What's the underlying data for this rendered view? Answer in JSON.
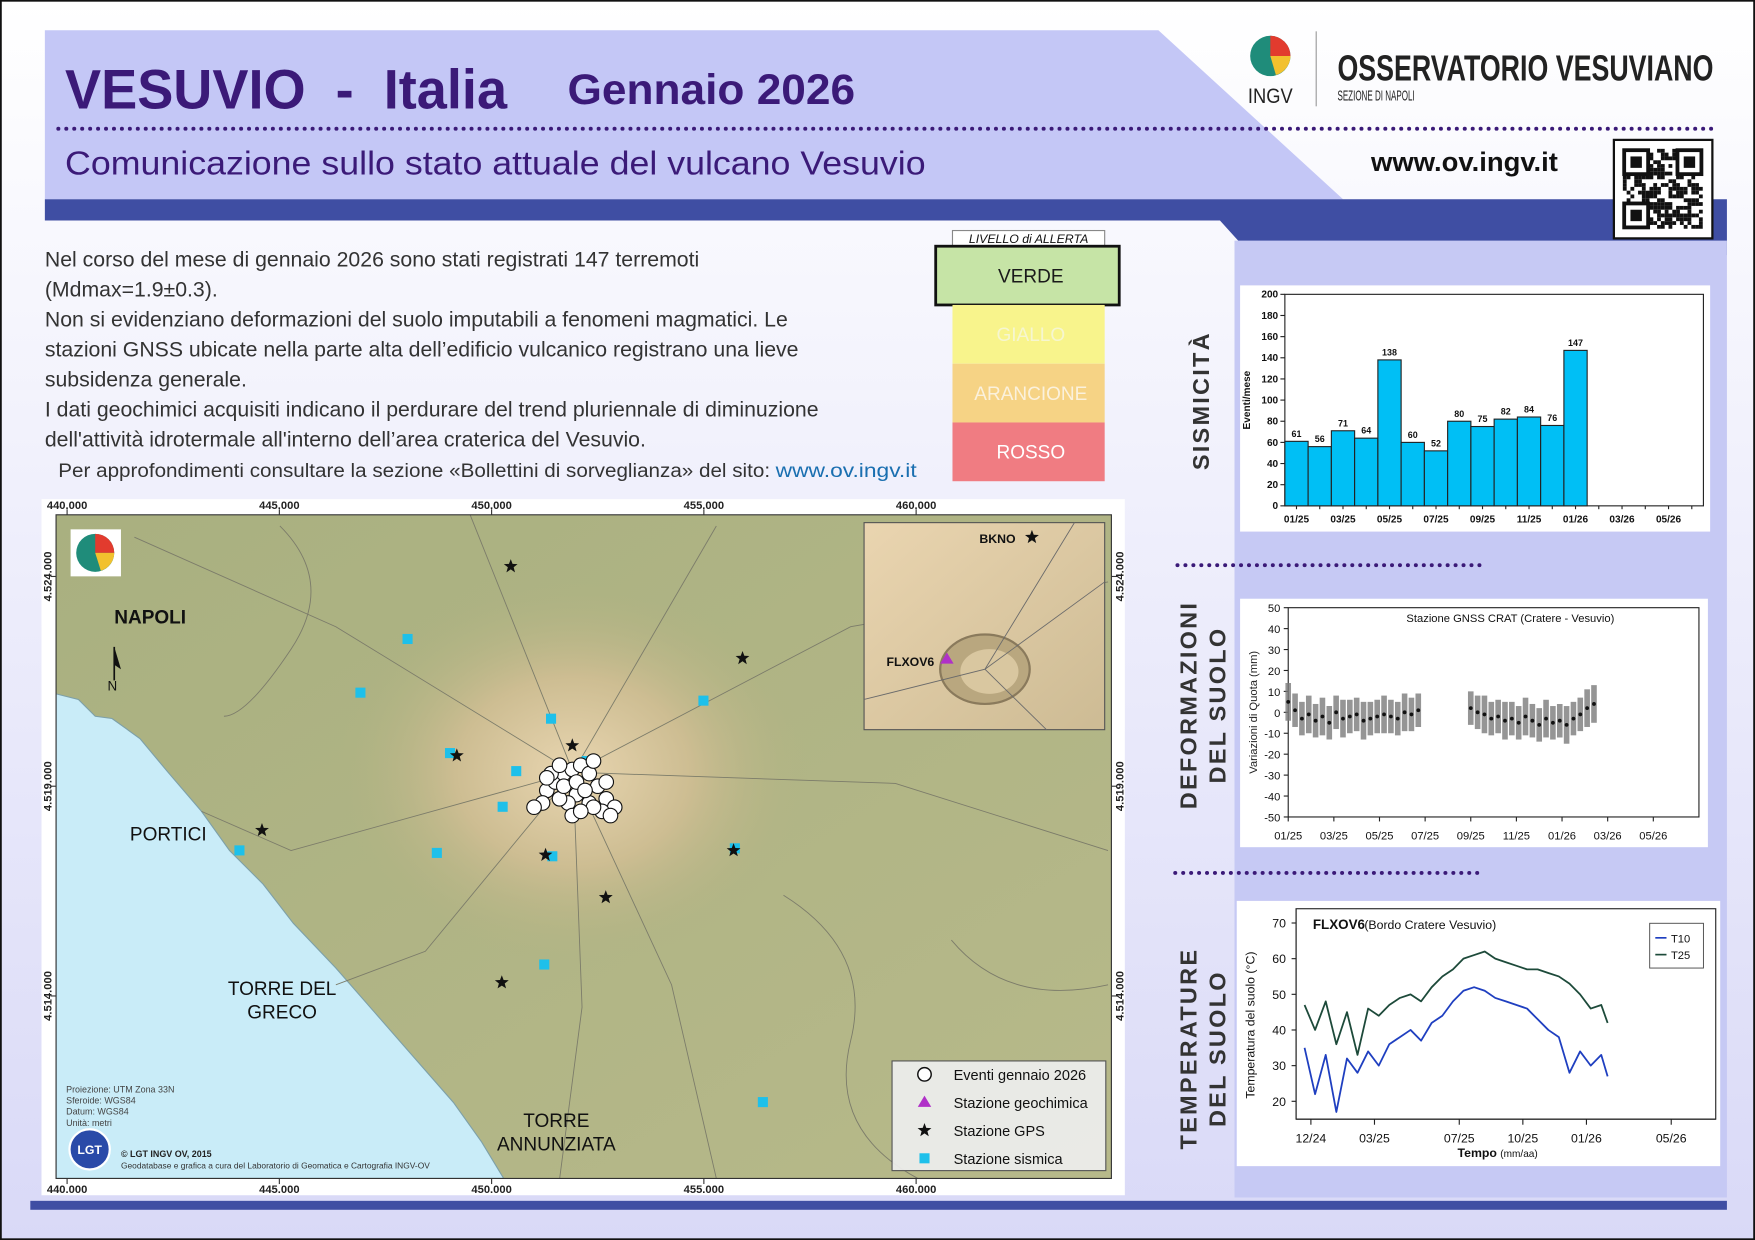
{
  "header": {
    "title": "VESUVIO  -  Italia",
    "period": "Gennaio 2026",
    "subtitle": "Comunicazione sullo stato attuale del vulcano Vesuvio",
    "logo": "INGV",
    "organization": "OSSERVATORIO VESUVIANO",
    "division": "SEZIONE DI NAPOLI",
    "website": "www.ov.ingv.it"
  },
  "summary": {
    "lines": [
      "Nel corso del mese di gennaio 2026 sono stati registrati 147 terremoti",
      "(Mdmax=1.9±0.3).",
      "Non si evidenziano deformazioni del suolo imputabili a fenomeni magmatici. Le",
      "stazioni GNSS ubicate nella parte alta dell’edificio vulcanico registrano una lieve",
      "subsidenza generale.",
      "I dati geochimici acquisiti indicano il perdurare del trend pluriennale di diminuzione",
      "dell'attività idrotermale all'interno dell’area craterica del Vesuvio."
    ],
    "more": "Per approfondimenti consultare la sezione «Bollettini di sorveglianza» del sito:",
    "link": "www.ov.ingv.it"
  },
  "alert": {
    "title": "LIVELLO di ALLERTA",
    "active": 0,
    "levels": [
      {
        "label": "VERDE",
        "color": "#c6e4a6",
        "text_color": "#1a1a1a"
      },
      {
        "label": "GIALLO",
        "color": "#f8f48c",
        "text_color": "#f6f6d0"
      },
      {
        "label": "ARANCIONE",
        "color": "#f6d385",
        "text_color": "#fbf1dc"
      },
      {
        "label": "ROSSO",
        "color": "#f07c82",
        "text_color": "#ffffff"
      }
    ]
  },
  "map": {
    "xlim": [
      439740,
      464600
    ],
    "ylim": [
      4509650,
      4525470
    ],
    "xticks": [
      {
        "value": 440000,
        "label": "440.000"
      },
      {
        "value": 445000,
        "label": "445.000"
      },
      {
        "value": 450000,
        "label": "450.000"
      },
      {
        "value": 455000,
        "label": "455.000"
      },
      {
        "value": 460000,
        "label": "460.000"
      }
    ],
    "yticks": [
      {
        "value": 4514000,
        "label": "4.514.000"
      },
      {
        "value": 4519000,
        "label": "4.519.000"
      },
      {
        "value": 4524000,
        "label": "4.524.000"
      }
    ],
    "places": [
      [
        "NAPOLI"
      ],
      [
        "PORTICI"
      ],
      [
        "TORRE DEL",
        "GRECO"
      ],
      [
        "TORRE",
        "ANNUNZIATA"
      ]
    ],
    "inset_labels": [
      "BKNO",
      "FLXOV6"
    ],
    "north": "N",
    "stations": {
      "gps": [
        [
          450450,
          4524240
        ],
        [
          455910,
          4522050
        ],
        [
          449180,
          4519730
        ],
        [
          451900,
          4519970
        ],
        [
          444590,
          4517950
        ],
        [
          451270,
          4517360
        ],
        [
          455700,
          4517470
        ],
        [
          452690,
          4516350
        ],
        [
          450240,
          4514320
        ]
      ],
      "seismic": [
        [
          448020,
          4522510
        ],
        [
          446910,
          4521230
        ],
        [
          451400,
          4520610
        ],
        [
          454990,
          4521040
        ],
        [
          449020,
          4519790
        ],
        [
          450580,
          4519360
        ],
        [
          452240,
          4519600
        ],
        [
          450260,
          4518510
        ],
        [
          448710,
          4517410
        ],
        [
          451430,
          4517330
        ],
        [
          455730,
          4517520
        ],
        [
          444060,
          4517470
        ],
        [
          451240,
          4514750
        ],
        [
          456390,
          4511470
        ]
      ],
      "events": [
        [
          451300,
          4518900
        ],
        [
          451500,
          4519100
        ],
        [
          451700,
          4519300
        ],
        [
          451900,
          4519400
        ],
        [
          452100,
          4519500
        ],
        [
          452300,
          4519300
        ],
        [
          452500,
          4519000
        ],
        [
          452700,
          4518700
        ],
        [
          452900,
          4518500
        ],
        [
          452600,
          4518400
        ],
        [
          452300,
          4518600
        ],
        [
          452000,
          4518800
        ],
        [
          451800,
          4518600
        ],
        [
          451600,
          4518700
        ],
        [
          451200,
          4518600
        ],
        [
          451000,
          4518500
        ],
        [
          451400,
          4519300
        ],
        [
          451700,
          4519000
        ],
        [
          452000,
          4519100
        ],
        [
          452200,
          4518900
        ],
        [
          452400,
          4518500
        ],
        [
          452800,
          4518300
        ],
        [
          451900,
          4518300
        ],
        [
          452400,
          4519600
        ],
        [
          451600,
          4519500
        ],
        [
          452100,
          4518400
        ],
        [
          451300,
          4519200
        ],
        [
          452700,
          4519100
        ]
      ]
    },
    "legend": [
      "Eventi gennaio 2026",
      "Stazione geochimica",
      "Stazione GPS",
      "Stazione sismica"
    ],
    "notes": [
      "Proiezione: UTM Zona 33N",
      "Sferoide: WGS84",
      "Datum: WGS84",
      "Unità: metri"
    ],
    "lab_logo": "LGT",
    "credit": "© LGT INGV OV, 2015",
    "credit_note": "Geodatabase e grafica a cura del Laboratorio di Geomatica e Cartografia INGV-OV"
  },
  "sections": {
    "seismicity": [
      "SISMICITÀ"
    ],
    "deformation": [
      "DEFORMAZIONI",
      "DEL SUOLO"
    ],
    "temperature": [
      "TEMPERATURE",
      "DEL SUOLO"
    ]
  },
  "chart_data": [
    {
      "type": "bar",
      "y_label": "Eventi/mese",
      "categories": [
        "01/25",
        null,
        "03/25",
        null,
        "05/25",
        null,
        "07/25",
        null,
        "09/25",
        null,
        "11/25",
        null,
        "01/26",
        null,
        "03/26",
        null,
        "05/26",
        null
      ],
      "values": [
        61,
        56,
        71,
        64,
        138,
        60,
        52,
        80,
        75,
        82,
        84,
        76,
        147,
        null,
        null,
        null,
        null,
        null
      ],
      "color": "#00bff5",
      "ylim": [
        0,
        200
      ],
      "yticks": [
        0,
        20,
        40,
        60,
        80,
        100,
        120,
        140,
        160,
        180,
        200
      ]
    },
    {
      "type": "errorbar",
      "title": "Stazione GNSS CRAT (Cratere - Vesuvio)",
      "y_label": "Variazioni di Quota (mm)",
      "x": [
        0,
        0.3,
        0.6,
        0.9,
        1.2,
        1.5,
        1.8,
        2.1,
        2.4,
        2.7,
        3,
        3.3,
        3.6,
        3.9,
        4.2,
        4.5,
        4.8,
        5.1,
        5.4,
        5.7,
        8,
        8.3,
        8.6,
        8.9,
        9.2,
        9.5,
        9.8,
        10.1,
        10.4,
        10.7,
        11,
        11.3,
        11.6,
        11.9,
        12.2,
        12.5,
        12.8,
        13.1,
        13.4
      ],
      "values": [
        5,
        1,
        -3,
        -1,
        -4,
        -2,
        -5,
        0,
        -3,
        -2,
        -1,
        -4,
        -3,
        -2,
        -1,
        -2,
        -3,
        0,
        -1,
        1,
        2,
        0,
        -1,
        -3,
        -2,
        -4,
        -3,
        -5,
        -2,
        -4,
        -6,
        -3,
        -5,
        -4,
        -6,
        -3,
        -1,
        2,
        4
      ],
      "errors": [
        9,
        8,
        8,
        9,
        8,
        9,
        8,
        8,
        9,
        8,
        8,
        9,
        8,
        8,
        9,
        8,
        8,
        9,
        8,
        8,
        8,
        8,
        9,
        8,
        8,
        9,
        8,
        8,
        9,
        8,
        8,
        9,
        8,
        8,
        9,
        8,
        8,
        9,
        9
      ],
      "color": "#111111",
      "error_color": "#7a7a7a",
      "xlim": [
        0,
        18
      ],
      "xticks": [
        {
          "value": 0,
          "label": "01/25"
        },
        {
          "value": 2,
          "label": "03/25"
        },
        {
          "value": 4,
          "label": "05/25"
        },
        {
          "value": 6,
          "label": "07/25"
        },
        {
          "value": 8,
          "label": "09/25"
        },
        {
          "value": 10,
          "label": "11/25"
        },
        {
          "value": 12,
          "label": "01/26"
        },
        {
          "value": 14,
          "label": "03/26"
        },
        {
          "value": 16,
          "label": "05/26"
        }
      ],
      "ylim": [
        -50,
        50
      ],
      "yticks": [
        -50,
        -40,
        -30,
        -20,
        -10,
        0,
        10,
        20,
        30,
        40,
        50
      ]
    },
    {
      "type": "line",
      "title": "FLXOV6",
      "title_note": "(Bordo Cratere Vesuvio)",
      "x_label": "Tempo",
      "x_label_note": "(mm/aa)",
      "y_label": "Temperatura del suolo (°C)",
      "x": [
        -0.3,
        0.2,
        0.7,
        1.2,
        1.7,
        2.2,
        2.7,
        3.2,
        3.7,
        4.2,
        4.7,
        5.2,
        5.7,
        6.2,
        6.7,
        7.2,
        7.7,
        8.2,
        8.7,
        9.2,
        9.7,
        10.2,
        10.7,
        11.2,
        11.7,
        12.2,
        12.7,
        13.2,
        13.7,
        14.0
      ],
      "series": [
        {
          "name": "T10",
          "color": "#1f3fc0",
          "values": [
            35,
            22,
            33,
            17,
            32,
            28,
            34,
            30,
            36,
            38,
            40,
            37,
            42,
            44,
            48,
            51,
            52,
            51,
            49,
            48,
            47,
            46,
            43,
            40,
            38,
            28,
            34,
            30,
            33,
            27
          ]
        },
        {
          "name": "T25",
          "color": "#1d4a3a",
          "values": [
            47,
            40,
            48,
            36,
            45,
            33,
            46,
            44,
            47,
            49,
            50,
            48,
            52,
            55,
            57,
            60,
            61,
            62,
            60,
            59,
            58,
            57,
            57,
            56,
            55,
            53,
            50,
            46,
            47,
            42
          ]
        }
      ],
      "xlim": [
        -0.7,
        19.1
      ],
      "xticks": [
        {
          "value": 0,
          "label": "12/24"
        },
        {
          "value": 3,
          "label": "03/25"
        },
        {
          "value": 7,
          "label": "07/25"
        },
        {
          "value": 10,
          "label": "10/25"
        },
        {
          "value": 13,
          "label": "01/26"
        },
        {
          "value": 17,
          "label": "05/26"
        }
      ],
      "ylim": [
        15,
        74
      ],
      "yticks": [
        20,
        30,
        40,
        50,
        60,
        70
      ],
      "legend": "upper right"
    }
  ]
}
